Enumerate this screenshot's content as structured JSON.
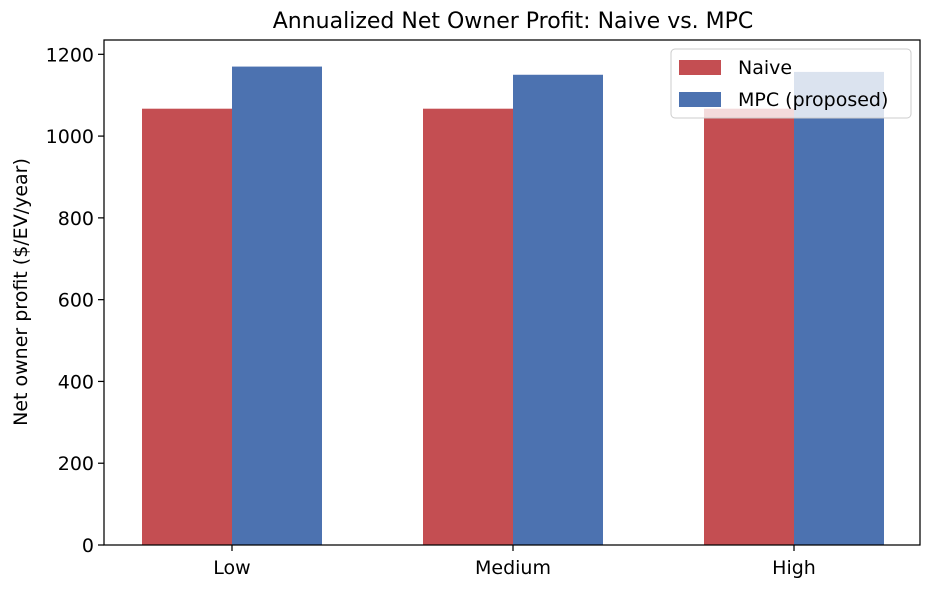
{
  "chart_data": {
    "type": "bar",
    "title": "Annualized Net Owner Profit: Naive vs. MPC",
    "xlabel": "",
    "ylabel": "Net owner profit ($/EV/year)",
    "categories": [
      "Low",
      "Medium",
      "High"
    ],
    "series": [
      {
        "name": "Naive",
        "values": [
          1067,
          1067,
          1067
        ],
        "color": "#c44e52"
      },
      {
        "name": "MPC (proposed)",
        "values": [
          1170,
          1150,
          1157
        ],
        "color": "#4c72b0"
      }
    ],
    "ylim": [
      0,
      1235
    ],
    "yticks": [
      0,
      200,
      400,
      600,
      800,
      1000,
      1200
    ],
    "grid": false,
    "legend_position": "top-right"
  }
}
